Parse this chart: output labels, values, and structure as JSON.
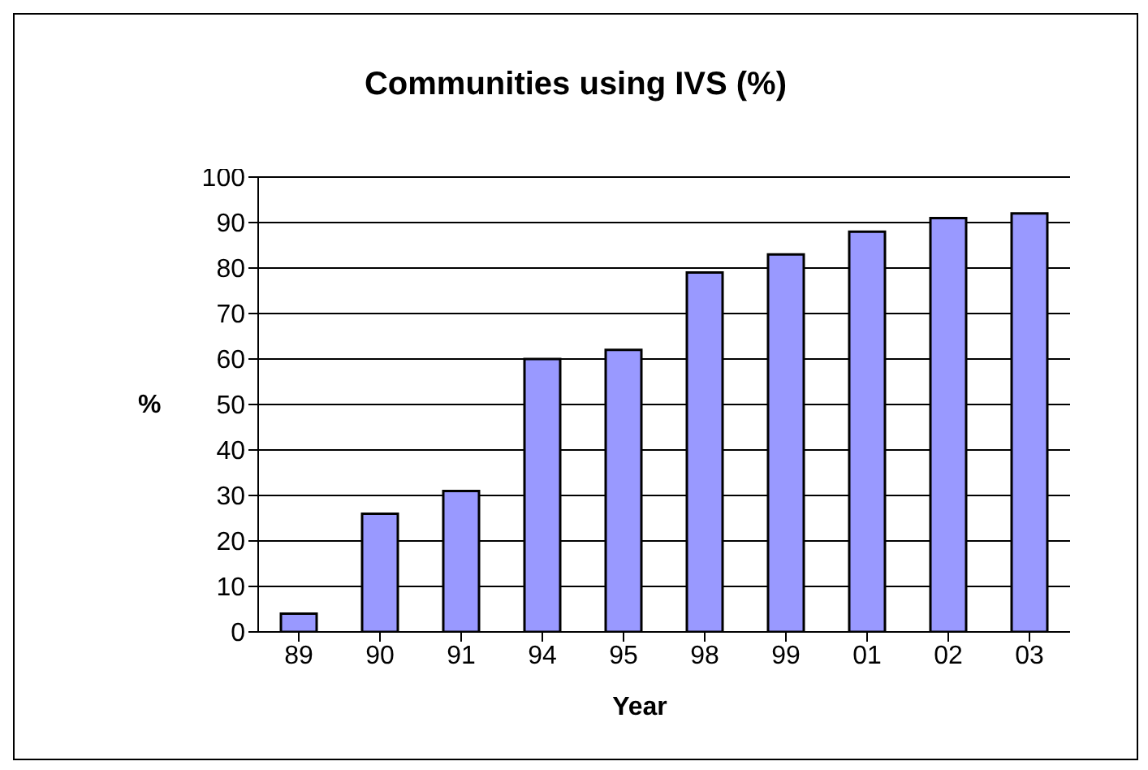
{
  "chart_data": {
    "type": "bar",
    "title": "Communities using IVS (%)",
    "xlabel": "Year",
    "ylabel": "%",
    "categories": [
      "89",
      "90",
      "91",
      "94",
      "95",
      "98",
      "99",
      "01",
      "02",
      "03"
    ],
    "values": [
      4,
      26,
      31,
      60,
      62,
      79,
      83,
      88,
      91,
      92
    ],
    "color": "#9999ff",
    "ylim": [
      0,
      100
    ],
    "yticks": [
      0,
      10,
      20,
      30,
      40,
      50,
      60,
      70,
      80,
      90,
      100
    ],
    "grid": "y",
    "legend": false
  }
}
